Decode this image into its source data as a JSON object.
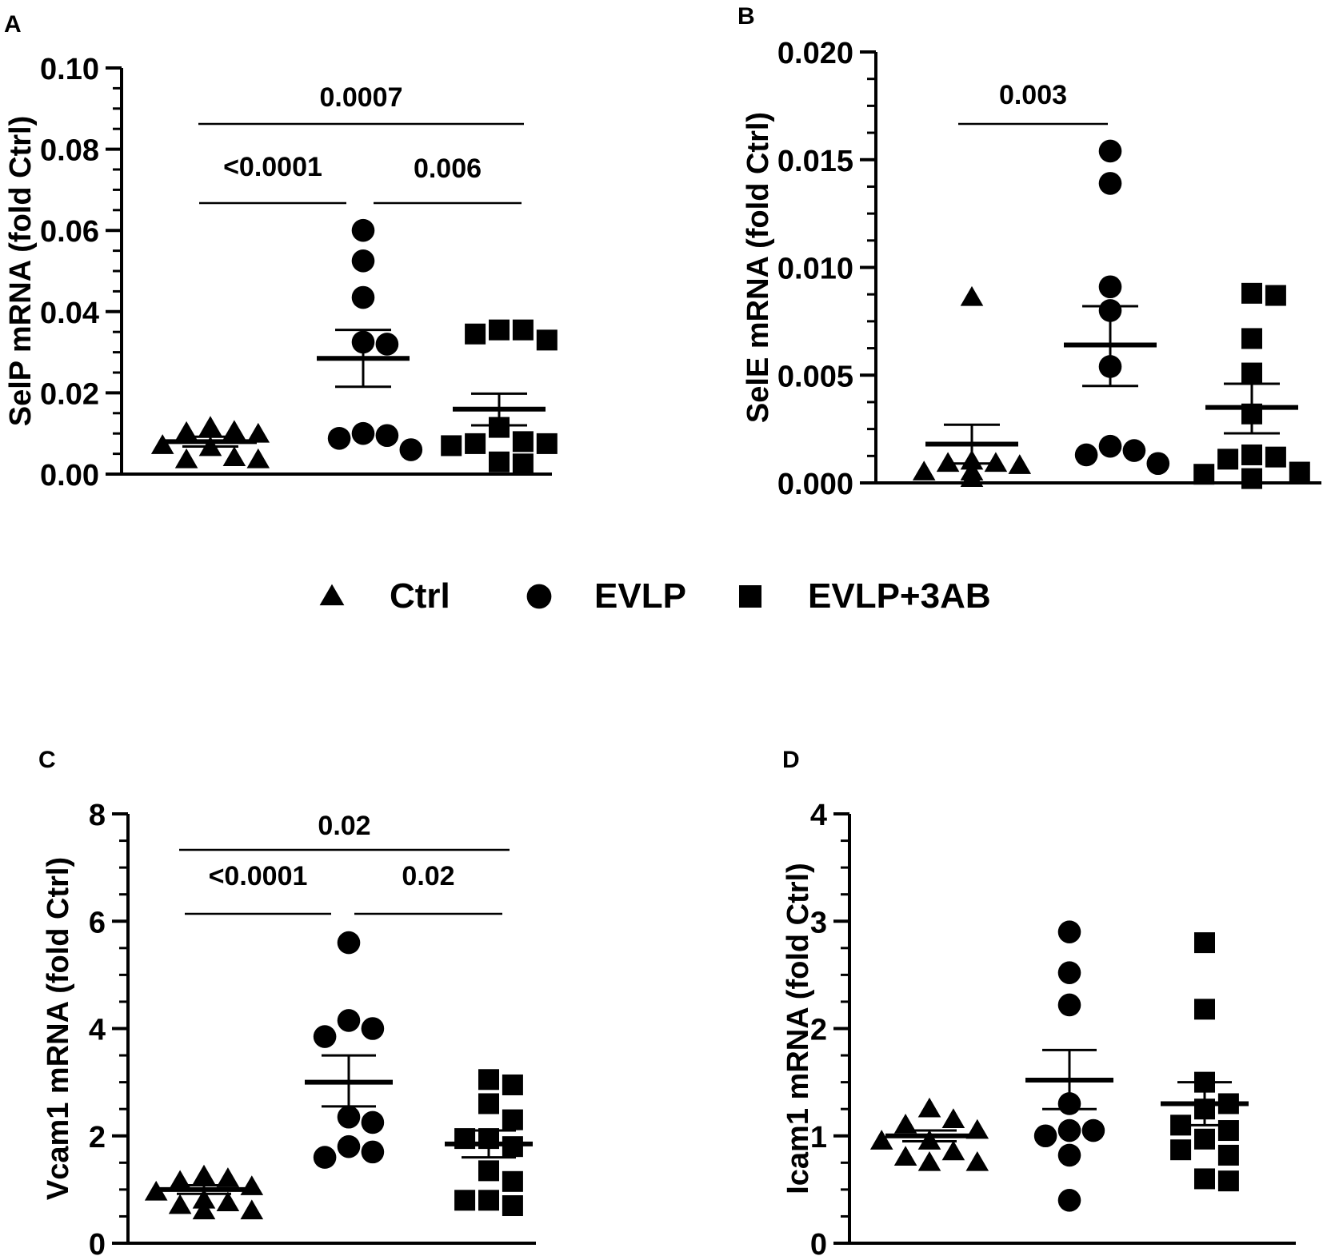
{
  "legend": {
    "items": [
      {
        "label": "Ctrl",
        "marker": "triangle"
      },
      {
        "label": "EVLP",
        "marker": "circle"
      },
      {
        "label": "EVLP+3AB",
        "marker": "square"
      }
    ]
  },
  "chart_data": [
    {
      "panel": "A",
      "type": "scatter",
      "ylabel": "SelP mRNA (fold Ctrl)",
      "ylim": [
        0,
        0.1
      ],
      "yticks": [
        "0.00",
        "0.02",
        "0.04",
        "0.06",
        "0.08",
        "0.10"
      ],
      "groups": [
        {
          "name": "Ctrl",
          "marker": "triangle",
          "mean": 0.008,
          "sem_lower": 0.0068,
          "sem_upper": 0.0092,
          "points": [
            0.0115,
            0.0105,
            0.0102,
            0.0098,
            0.007,
            0.0065,
            0.004,
            0.0035,
            0.0035
          ]
        },
        {
          "name": "EVLP",
          "marker": "circle",
          "mean": 0.0285,
          "sem_lower": 0.0215,
          "sem_upper": 0.0355,
          "points": [
            0.06,
            0.0525,
            0.0435,
            0.0325,
            0.032,
            0.01,
            0.0095,
            0.0088,
            0.006
          ]
        },
        {
          "name": "EVLP+3AB",
          "marker": "square",
          "mean": 0.016,
          "sem_lower": 0.012,
          "sem_upper": 0.0198,
          "points": [
            0.0355,
            0.0355,
            0.0345,
            0.033,
            0.0115,
            0.008,
            0.0075,
            0.0075,
            0.007,
            0.003,
            0.0025
          ]
        }
      ],
      "comparisons": [
        {
          "from": 0,
          "to": 2,
          "label": "0.0007"
        },
        {
          "from": 0,
          "to": 1,
          "label": "<0.0001"
        },
        {
          "from": 1,
          "to": 2,
          "label": "0.006"
        }
      ]
    },
    {
      "panel": "B",
      "type": "scatter",
      "ylabel": "SelE mRNA (fold Ctrl)",
      "ylim": [
        0,
        0.02
      ],
      "yticks": [
        "0.000",
        "0.005",
        "0.010",
        "0.015",
        "0.020"
      ],
      "groups": [
        {
          "name": "Ctrl",
          "marker": "triangle",
          "mean": 0.0018,
          "sem_lower": 0.0009,
          "sem_upper": 0.0027,
          "points": [
            0.0086,
            0.001,
            0.0009,
            0.0009,
            0.0008,
            0.0005,
            0.0005,
            0.0005,
            0.0002
          ]
        },
        {
          "name": "EVLP",
          "marker": "circle",
          "mean": 0.0064,
          "sem_lower": 0.0045,
          "sem_upper": 0.0082,
          "points": [
            0.0154,
            0.0139,
            0.0091,
            0.008,
            0.0054,
            0.0017,
            0.0015,
            0.0013,
            0.0009
          ]
        },
        {
          "name": "EVLP+3AB",
          "marker": "square",
          "mean": 0.0035,
          "sem_lower": 0.0023,
          "sem_upper": 0.0046,
          "points": [
            0.0088,
            0.0087,
            0.0067,
            0.0051,
            0.0032,
            0.0013,
            0.0012,
            0.0011,
            0.0005,
            0.0004,
            0.0002
          ]
        }
      ],
      "comparisons": [
        {
          "from": 0,
          "to": 1,
          "label": "0.003"
        }
      ]
    },
    {
      "panel": "C",
      "type": "scatter",
      "ylabel": "Vcam1 mRNA (fold Ctrl)",
      "ylim": [
        0,
        8
      ],
      "yticks": [
        "0",
        "2",
        "4",
        "6",
        "8"
      ],
      "groups": [
        {
          "name": "Ctrl",
          "marker": "triangle",
          "mean": 1.0,
          "sem_lower": 0.92,
          "sem_upper": 1.08,
          "points": [
            1.25,
            1.2,
            1.15,
            1.05,
            0.95,
            0.8,
            0.75,
            0.7,
            0.6,
            0.6
          ]
        },
        {
          "name": "EVLP",
          "marker": "circle",
          "mean": 3.0,
          "sem_lower": 2.55,
          "sem_upper": 3.5,
          "points": [
            5.6,
            4.15,
            4.0,
            3.85,
            2.35,
            2.25,
            1.8,
            1.7,
            1.6
          ]
        },
        {
          "name": "EVLP+3AB",
          "marker": "square",
          "mean": 1.85,
          "sem_lower": 1.6,
          "sem_upper": 2.1,
          "points": [
            3.05,
            2.95,
            2.6,
            2.3,
            1.95,
            1.95,
            1.8,
            1.35,
            1.15,
            0.8,
            0.8,
            0.7
          ]
        }
      ],
      "comparisons": [
        {
          "from": 0,
          "to": 2,
          "label": "0.02"
        },
        {
          "from": 0,
          "to": 1,
          "label": "<0.0001"
        },
        {
          "from": 1,
          "to": 2,
          "label": "0.02"
        }
      ]
    },
    {
      "panel": "D",
      "type": "scatter",
      "ylabel": "Icam1 mRNA (fold Ctrl)",
      "ylim": [
        0,
        4
      ],
      "yticks": [
        "0",
        "1",
        "2",
        "3",
        "4"
      ],
      "groups": [
        {
          "name": "Ctrl",
          "marker": "triangle",
          "mean": 1.0,
          "sem_lower": 0.95,
          "sem_upper": 1.05,
          "points": [
            1.25,
            1.15,
            1.1,
            1.05,
            0.95,
            0.95,
            0.85,
            0.8,
            0.75,
            0.75
          ]
        },
        {
          "name": "EVLP",
          "marker": "circle",
          "mean": 1.52,
          "sem_lower": 1.25,
          "sem_upper": 1.8,
          "points": [
            2.9,
            2.52,
            2.22,
            1.3,
            1.05,
            1.05,
            1.0,
            0.82,
            0.4
          ]
        },
        {
          "name": "EVLP+3AB",
          "marker": "square",
          "mean": 1.3,
          "sem_lower": 1.1,
          "sem_upper": 1.5,
          "points": [
            2.8,
            2.18,
            1.5,
            1.3,
            1.25,
            1.1,
            1.05,
            0.97,
            0.87,
            0.82,
            0.6,
            0.58
          ]
        }
      ],
      "comparisons": []
    }
  ]
}
